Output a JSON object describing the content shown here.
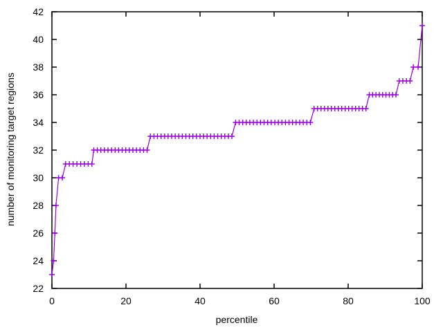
{
  "chart_data": {
    "type": "line",
    "subtype": "step-function-with-plus-markers",
    "title": "",
    "xlabel": "percentile",
    "ylabel": "number of monitoring target regions",
    "xlim": [
      0,
      100
    ],
    "ylim": [
      22,
      42
    ],
    "xticks": [
      0,
      20,
      40,
      60,
      80,
      100
    ],
    "yticks": [
      22,
      24,
      26,
      28,
      30,
      32,
      34,
      36,
      38,
      40,
      42
    ],
    "grid": false,
    "legend": "none",
    "line_color": "#9400d3",
    "border_color": "#000000",
    "background_color": "#ffffff",
    "marker": "plus",
    "marker_spacing_percentile": 0.95,
    "steps": [
      {
        "value": 23,
        "from": 0,
        "to": 0
      },
      {
        "value": 24,
        "from": 0.45,
        "to": 0.45
      },
      {
        "value": 26,
        "from": 0.8,
        "to": 0.8
      },
      {
        "value": 28,
        "from": 1.1,
        "to": 1.1
      },
      {
        "value": 30,
        "from": 1.8,
        "to": 2.8
      },
      {
        "value": 31,
        "from": 3.7,
        "to": 10.8
      },
      {
        "value": 32,
        "from": 11.3,
        "to": 25.7
      },
      {
        "value": 33,
        "from": 26.6,
        "to": 48.6
      },
      {
        "value": 34,
        "from": 49.6,
        "to": 69.8
      },
      {
        "value": 35,
        "from": 70.8,
        "to": 84.8
      },
      {
        "value": 36,
        "from": 85.7,
        "to": 92.9
      },
      {
        "value": 37,
        "from": 93.8,
        "to": 96.7
      },
      {
        "value": 38,
        "from": 97.6,
        "to": 98.9
      },
      {
        "value": 41,
        "from": 100,
        "to": 100
      }
    ]
  }
}
